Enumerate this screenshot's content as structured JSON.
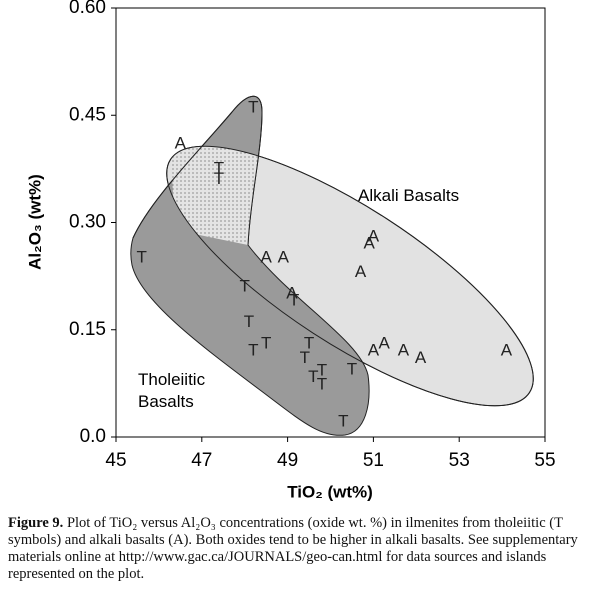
{
  "chart_data": {
    "type": "scatter",
    "xlabel": "TiO₂ (wt%)",
    "ylabel": "Al₂O₃ (wt%)",
    "xlim": [
      45,
      55
    ],
    "xticks": [
      45,
      47,
      49,
      51,
      53,
      55
    ],
    "ylim": [
      0,
      0.6
    ],
    "yticks": [
      {
        "value": 0,
        "label": "0.0"
      },
      {
        "value": 0.15,
        "label": "0.15"
      },
      {
        "value": 0.3,
        "label": "0.30"
      },
      {
        "value": 0.45,
        "label": "0.45"
      },
      {
        "value": 0.6,
        "label": "0.60"
      }
    ],
    "annotations": [
      [
        "Alkali Basalts"
      ],
      [
        "Tholeiitic",
        "Basalts"
      ]
    ],
    "series": [
      {
        "marker": "T",
        "color": "#222222",
        "x": [
          48.2,
          47.4,
          47.4,
          45.6,
          48.0,
          48.1,
          48.2,
          48.5,
          49.15,
          49.4,
          49.5,
          49.6,
          49.8,
          49.8,
          50.5,
          50.3
        ],
        "values": [
          0.46,
          0.375,
          0.36,
          0.25,
          0.21,
          0.16,
          0.12,
          0.13,
          0.19,
          0.11,
          0.13,
          0.083,
          0.092,
          0.073,
          0.094,
          0.021
        ]
      },
      {
        "marker": "A",
        "color": "#222222",
        "x": [
          46.5,
          48.5,
          48.9,
          49.1,
          50.7,
          50.9,
          51.0,
          51.0,
          51.25,
          51.7,
          52.1,
          54.1
        ],
        "values": [
          0.41,
          0.25,
          0.25,
          0.2,
          0.23,
          0.27,
          0.28,
          0.12,
          0.13,
          0.12,
          0.11,
          0.12
        ]
      }
    ]
  },
  "caption": {
    "label": "Figure 9.",
    "text": "Plot of TiO₂ versus Al₂O₃ concentrations (oxide wt. %) in ilmenites from tholeiitic (T symbols) and alkali basalts (A). Both oxides tend to be higher in alkali basalts. See supplementary materials online at http://www.gac.ca/JOURNALS/geo-can.html for data sources and islands represented on the plot."
  }
}
